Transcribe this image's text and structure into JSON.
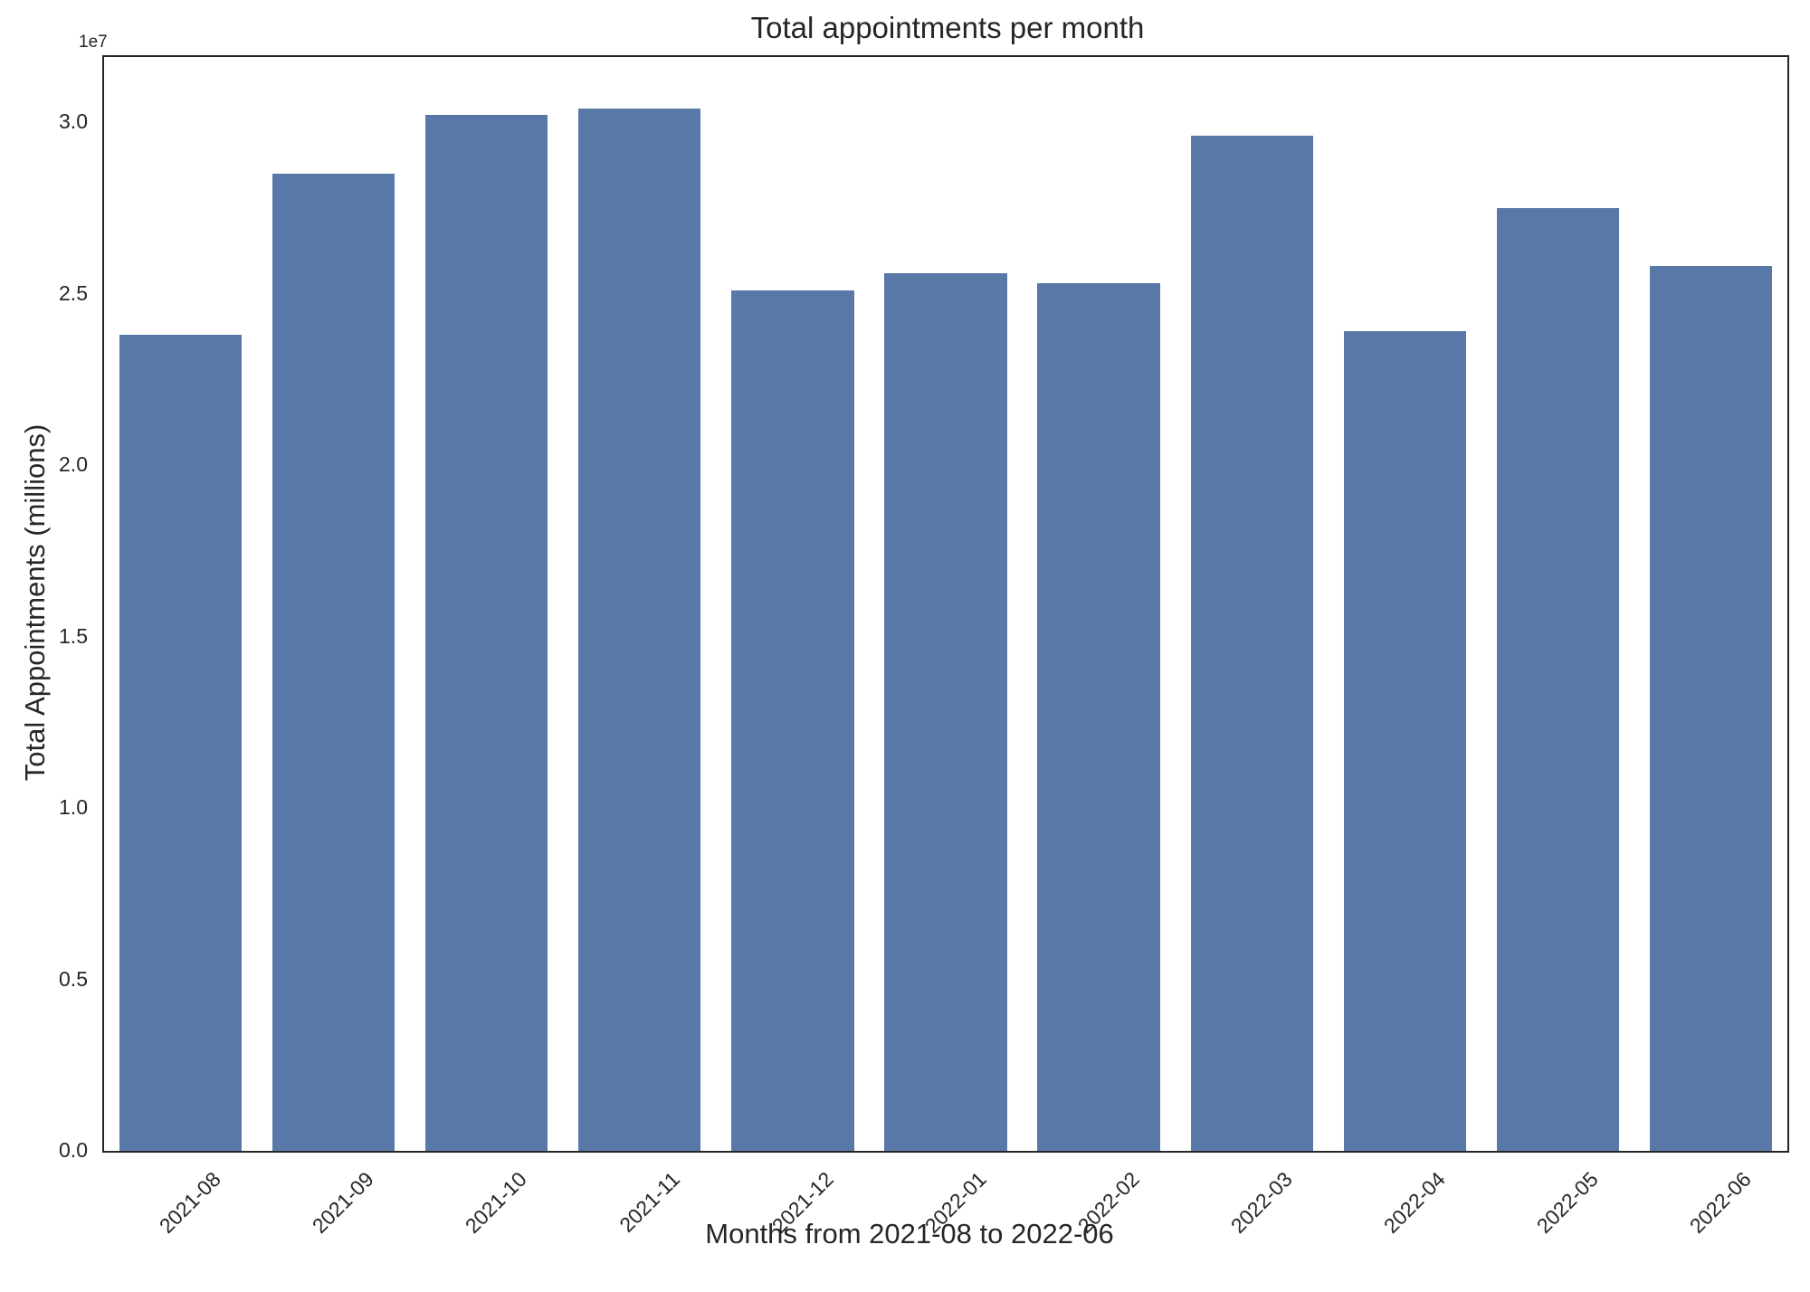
{
  "figure": {
    "background_color": "#ffffff",
    "text_color": "#262626",
    "spine_color": "#262626"
  },
  "chart_data": {
    "type": "bar",
    "title": "Total appointments per month",
    "xlabel": "Months from 2021-08 to 2022-06",
    "ylabel": "Total Appointments (millions)",
    "y_offset_label": "1e7",
    "categories": [
      "2021-08",
      "2021-09",
      "2021-10",
      "2021-11",
      "2021-12",
      "2022-01",
      "2022-02",
      "2022-03",
      "2022-04",
      "2022-05",
      "2022-06"
    ],
    "values": [
      23800000,
      28500000,
      30200000,
      30400000,
      25100000,
      25600000,
      25300000,
      29600000,
      23900000,
      27500000,
      25800000
    ],
    "bar_color": "#5878a8",
    "ylim": [
      0,
      31900000
    ],
    "yticks": [
      0,
      5000000,
      10000000,
      15000000,
      20000000,
      25000000,
      30000000
    ],
    "ytick_labels": [
      "0.0",
      "0.5",
      "1.0",
      "1.5",
      "2.0",
      "2.5",
      "3.0"
    ],
    "x_tick_rotation_deg": 45,
    "bar_width_fraction": 0.8,
    "grid": false,
    "legend_position": "none"
  }
}
